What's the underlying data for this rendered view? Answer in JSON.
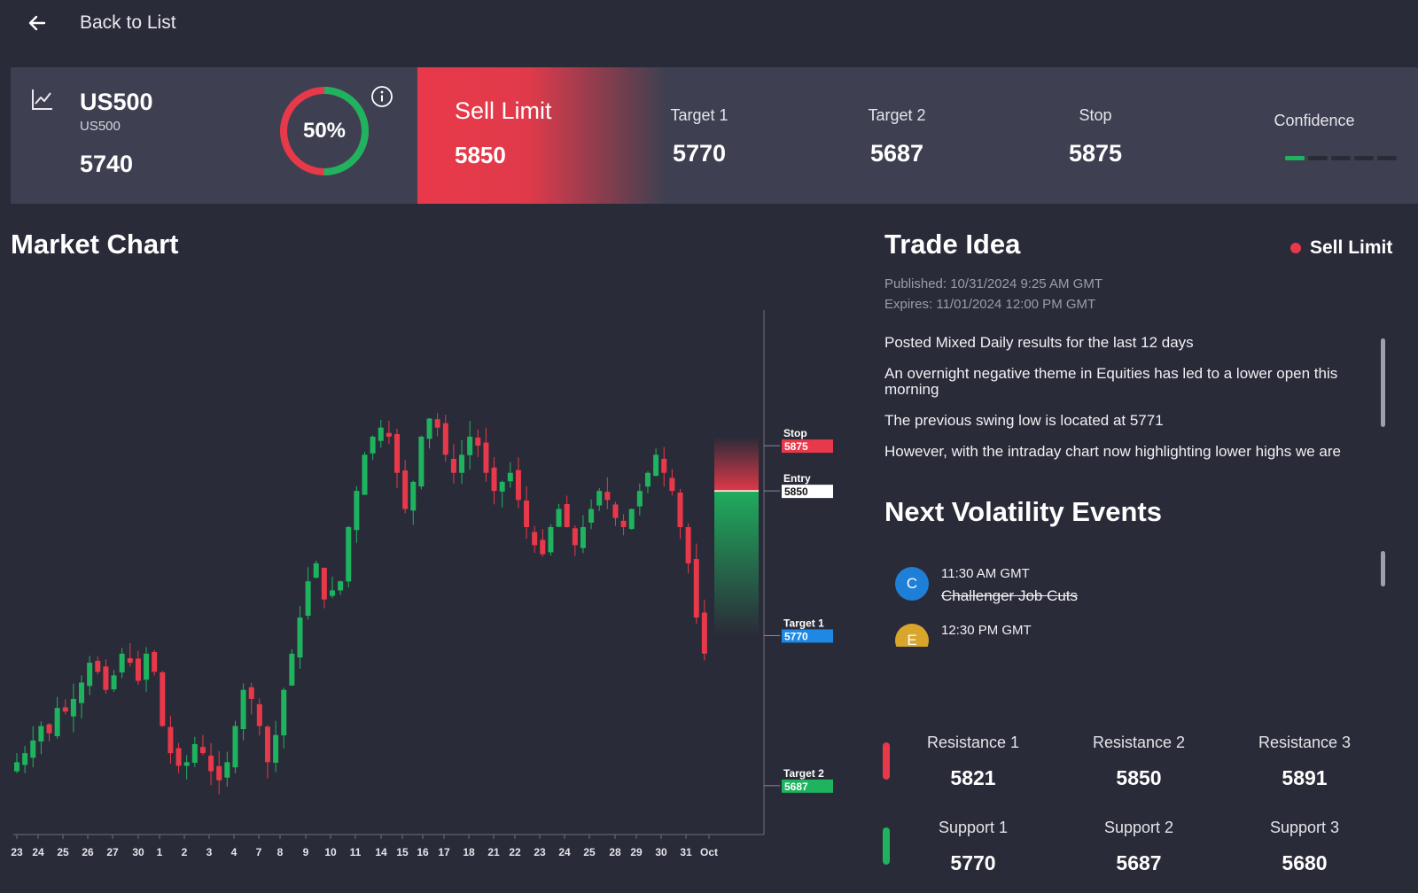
{
  "nav": {
    "back_label": "Back to List"
  },
  "summary": {
    "symbol": "US500",
    "symbol_sub": "US500",
    "price": "5740",
    "gauge_percent": 50,
    "gauge_label": "50%",
    "signal_type": "Sell Limit",
    "signal_value": "5850",
    "target1_label": "Target 1",
    "target1_value": "5770",
    "target2_label": "Target 2",
    "target2_value": "5687",
    "stop_label": "Stop",
    "stop_value": "5875",
    "confidence_label": "Confidence",
    "confidence_level": 1,
    "confidence_max": 5
  },
  "market": {
    "title": "Market Chart"
  },
  "idea": {
    "title": "Trade Idea",
    "badge": "Sell Limit",
    "published": "Published: 10/31/2024 9:25 AM GMT",
    "expires": "Expires: 11/01/2024 12:00 PM GMT",
    "paragraphs": [
      "Posted Mixed Daily results for the last 12 days",
      "An overnight negative theme in Equities has led to a lower open this morning",
      "The previous swing low is located at 5771",
      "However, with the intraday chart now highlighting lower highs we are"
    ]
  },
  "volatility": {
    "title": "Next Volatility Events",
    "events": [
      {
        "letter": "C",
        "time": "11:30 AM GMT",
        "name": "Challenger Job Cuts",
        "color": "#1e7fd6"
      },
      {
        "letter": "E",
        "time": "12:30 PM GMT",
        "name": "",
        "color": "#d9a52a"
      }
    ]
  },
  "levels": {
    "resistance": [
      {
        "label": "Resistance 1",
        "value": "5821"
      },
      {
        "label": "Resistance 2",
        "value": "5850"
      },
      {
        "label": "Resistance 3",
        "value": "5891"
      }
    ],
    "support": [
      {
        "label": "Support 1",
        "value": "5770"
      },
      {
        "label": "Support 2",
        "value": "5687"
      },
      {
        "label": "Support 3",
        "value": "5680"
      }
    ]
  },
  "colors": {
    "up": "#1fb35f",
    "down": "#e8394a",
    "target1_tag": "#1e88e5",
    "entry_tag": "#ffffff"
  },
  "chart_data": {
    "type": "candlestick",
    "ylim": [
      5660,
      5950
    ],
    "x_ticks": [
      "23",
      "24",
      "25",
      "26",
      "27",
      "30",
      "1",
      "2",
      "3",
      "4",
      "7",
      "8",
      "9",
      "10",
      "11",
      "14",
      "15",
      "16",
      "17",
      "18",
      "21",
      "22",
      "23",
      "24",
      "25",
      "28",
      "29",
      "30",
      "31",
      "Oct"
    ],
    "markers": [
      {
        "label": "Stop",
        "value": 5875,
        "text": "5875"
      },
      {
        "label": "Entry",
        "value": 5850,
        "text": "5850"
      },
      {
        "label": "Target 1",
        "value": 5770,
        "text": "5770"
      },
      {
        "label": "Target 2",
        "value": 5687,
        "text": "5687"
      }
    ],
    "close_path": [
      5700,
      5705,
      5712,
      5720,
      5716,
      5730,
      5728,
      5735,
      5744,
      5755,
      5750,
      5740,
      5748,
      5760,
      5755,
      5745,
      5760,
      5750,
      5720,
      5705,
      5698,
      5700,
      5710,
      5705,
      5695,
      5690,
      5700,
      5720,
      5740,
      5735,
      5720,
      5700,
      5715,
      5740,
      5760,
      5780,
      5800,
      5810,
      5790,
      5795,
      5800,
      5830,
      5850,
      5870,
      5880,
      5885,
      5880,
      5860,
      5840,
      5855,
      5880,
      5890,
      5885,
      5870,
      5860,
      5870,
      5880,
      5875,
      5860,
      5850,
      5855,
      5860,
      5845,
      5830,
      5820,
      5815,
      5830,
      5840,
      5830,
      5820,
      5830,
      5840,
      5850,
      5845,
      5835,
      5830,
      5840,
      5850,
      5860,
      5870,
      5860,
      5850,
      5830,
      5810,
      5780,
      5760
    ]
  }
}
